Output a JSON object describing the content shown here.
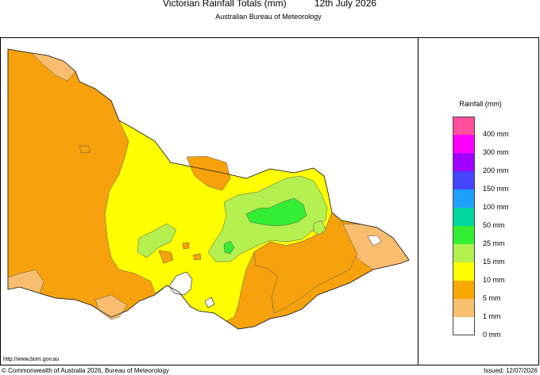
{
  "header": {
    "title": "Victorian Rainfall Totals (mm)",
    "date": "12th July 2026",
    "subtitle": "Australian Bureau of Meteorology"
  },
  "legend": {
    "title": "Rainfall (mm)",
    "items": [
      {
        "label": "400 mm",
        "color": "#ff4f9c"
      },
      {
        "label": "300 mm",
        "color": "#ff00ff"
      },
      {
        "label": "200 mm",
        "color": "#a000ff"
      },
      {
        "label": "150 mm",
        "color": "#4646ff"
      },
      {
        "label": "100 mm",
        "color": "#1ea0ff"
      },
      {
        "label": "50 mm",
        "color": "#00d8a0"
      },
      {
        "label": "25 mm",
        "color": "#33ee33"
      },
      {
        "label": "15 mm",
        "color": "#b4f050"
      },
      {
        "label": "10 mm",
        "color": "#ffff00"
      },
      {
        "label": "5 mm",
        "color": "#f8a800"
      },
      {
        "label": "1 mm",
        "color": "#f8c070"
      },
      {
        "label": "0 mm",
        "color": "#ffffff"
      }
    ]
  },
  "map_colors": {
    "orange": "#f7a20c",
    "light_orange": "#f9bd6f",
    "yellow": "#ffff00",
    "light_green": "#b4f050",
    "green": "#33ee33",
    "water": "#ffffff"
  },
  "footer": {
    "url": "http://www.bom.gov.au",
    "copyright": "© Commonwealth of Australia 2026, Bureau of Meteorology",
    "issued": "Issued: 12/07/2026"
  }
}
